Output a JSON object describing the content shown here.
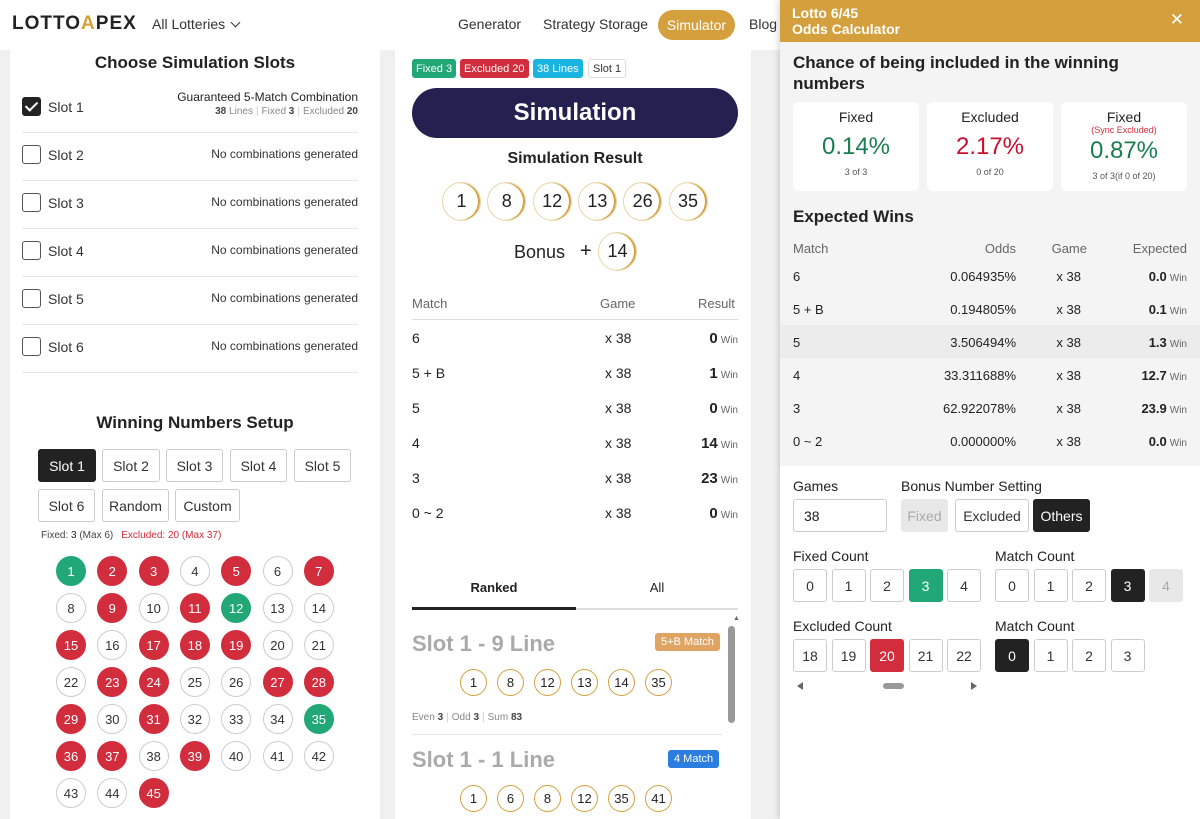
{
  "header": {
    "logo": "LOTTO",
    "logo_mark": "A",
    "logo_rest": "PEX",
    "all_lotteries": "All Lotteries",
    "nav": {
      "generator": "Generator",
      "strategy_storage": "Strategy Storage",
      "simulator": "Simulator",
      "blog": "Blog"
    }
  },
  "slots": {
    "title": "Choose Simulation Slots",
    "items": [
      {
        "name": "Slot 1",
        "checked": true,
        "info": "Guaranteed 5-Match Combination",
        "lines": "38",
        "lines_label": "Lines",
        "fixed": "3",
        "fixed_label": "Fixed",
        "excluded": "20",
        "excluded_label": "Excluded"
      },
      {
        "name": "Slot 2",
        "checked": false,
        "info": "No combinations generated"
      },
      {
        "name": "Slot 3",
        "checked": false,
        "info": "No combinations generated"
      },
      {
        "name": "Slot 4",
        "checked": false,
        "info": "No combinations generated"
      },
      {
        "name": "Slot 5",
        "checked": false,
        "info": "No combinations generated"
      },
      {
        "name": "Slot 6",
        "checked": false,
        "info": "No combinations generated"
      }
    ]
  },
  "winning_setup": {
    "title": "Winning Numbers Setup",
    "tabs": [
      "Slot 1",
      "Slot 2",
      "Slot 3",
      "Slot 4",
      "Slot 5",
      "Slot 6",
      "Random",
      "Custom"
    ],
    "active_tab": "Slot 1",
    "fixed_text": "Fixed: ",
    "fixed_val": "3",
    "fixed_max": " (Max 6)",
    "excluded_text": "Excluded: ",
    "excluded_val": "20",
    "excluded_max": " (Max 37)",
    "numbers": [
      "1",
      "2",
      "3",
      "4",
      "5",
      "6",
      "7",
      "8",
      "9",
      "10",
      "11",
      "12",
      "13",
      "14",
      "15",
      "16",
      "17",
      "18",
      "19",
      "20",
      "21",
      "22",
      "23",
      "24",
      "25",
      "26",
      "27",
      "28",
      "29",
      "30",
      "31",
      "32",
      "33",
      "34",
      "35",
      "36",
      "37",
      "38",
      "39",
      "40",
      "41",
      "42",
      "43",
      "44",
      "45"
    ],
    "fixed_numbers": [
      1,
      12,
      35
    ],
    "excluded_numbers": [
      2,
      3,
      5,
      7,
      9,
      11,
      15,
      17,
      18,
      19,
      23,
      24,
      27,
      28,
      29,
      31,
      36,
      37,
      39,
      45
    ],
    "colors": {
      "fixed": "#22a876",
      "excluded": "#d22d3d"
    }
  },
  "simulation": {
    "badges": [
      {
        "text": "Fixed 3",
        "color": "#22a876"
      },
      {
        "text": "Excluded 20",
        "color": "#d22d3d"
      },
      {
        "text": "38 Lines",
        "color": "#19b5e0"
      },
      {
        "text": "Slot 1",
        "color": "#ffffff"
      }
    ],
    "button": "Simulation",
    "result_title": "Simulation Result",
    "result_numbers": [
      "1",
      "8",
      "12",
      "13",
      "26",
      "35"
    ],
    "bonus_label": "Bonus",
    "bonus_plus": "+",
    "bonus_number": "14",
    "table_headers": [
      "Match",
      "Game",
      "Result"
    ],
    "rows": [
      {
        "match": "6",
        "game": "x 38",
        "result": "0",
        "unit": "Win"
      },
      {
        "match": "5 + B",
        "game": "x 38",
        "result": "1",
        "unit": "Win"
      },
      {
        "match": "5",
        "game": "x 38",
        "result": "0",
        "unit": "Win"
      },
      {
        "match": "4",
        "game": "x 38",
        "result": "14",
        "unit": "Win"
      },
      {
        "match": "3",
        "game": "x 38",
        "result": "23",
        "unit": "Win"
      },
      {
        "match": "0 ~ 2",
        "game": "x 38",
        "result": "0",
        "unit": "Win"
      }
    ],
    "tabs": [
      "Ranked",
      "All"
    ],
    "ranked": [
      {
        "title": "Slot 1 - 9 Line",
        "badge": "5+B Match",
        "badge_color": "#e0a462",
        "numbers": [
          "1",
          "8",
          "12",
          "13",
          "14",
          "35"
        ],
        "even_label": "Even",
        "even": "3",
        "odd_label": "Odd",
        "odd": "3",
        "sum_label": "Sum",
        "sum": "83"
      },
      {
        "title": "Slot 1 - 1 Line",
        "badge": "4 Match",
        "badge_color": "#2b7de0",
        "numbers": [
          "1",
          "6",
          "8",
          "12",
          "35",
          "41"
        ]
      }
    ]
  },
  "calculator": {
    "title_line1": "Lotto 6/45",
    "title_line2": "Odds Calculator",
    "close": "✕",
    "chance_title": "Chance of being included in the winning numbers",
    "cards": [
      {
        "label": "Fixed",
        "sublabel": "",
        "pct": "0.14%",
        "sub": "3 of 3",
        "color": "#1a7d4e"
      },
      {
        "label": "Excluded",
        "sublabel": "",
        "pct": "2.17%",
        "sub": "0 of 20",
        "color": "#c8102e"
      },
      {
        "label": "Fixed",
        "sublabel": "(Sync Excluded)",
        "pct": "0.87%",
        "sub": "3 of 3(if 0 of 20)",
        "color": "#1a7d4e"
      }
    ],
    "expected_title": "Expected Wins",
    "headers": [
      "Match",
      "Odds",
      "Game",
      "Expected"
    ],
    "rows": [
      {
        "match": "6",
        "odds": "0.064935%",
        "game": "x 38",
        "expected": "0.0",
        "unit": "Win"
      },
      {
        "match": "5 + B",
        "odds": "0.194805%",
        "game": "x 38",
        "expected": "0.1",
        "unit": "Win"
      },
      {
        "match": "5",
        "odds": "3.506494%",
        "game": "x 38",
        "expected": "1.3",
        "unit": "Win"
      },
      {
        "match": "4",
        "odds": "33.311688%",
        "game": "x 38",
        "expected": "12.7",
        "unit": "Win"
      },
      {
        "match": "3",
        "odds": "62.922078%",
        "game": "x 38",
        "expected": "23.9",
        "unit": "Win"
      },
      {
        "match": "0 ~ 2",
        "odds": "0.000000%",
        "game": "x 38",
        "expected": "0.0",
        "unit": "Win"
      }
    ],
    "games_label": "Games",
    "games_value": "38",
    "bonus_label": "Bonus Number Setting",
    "bonus_options": [
      "Fixed",
      "Excluded",
      "Others"
    ],
    "bonus_active": "Others",
    "fixed_count_label": "Fixed Count",
    "fixed_count_options": [
      "0",
      "1",
      "2",
      "3",
      "4"
    ],
    "fixed_count_active": "3",
    "match_count_label": "Match Count",
    "match_count_options": [
      "0",
      "1",
      "2",
      "3",
      "4"
    ],
    "match_count_active": "3",
    "match_count_disabled": "4",
    "excluded_count_label": "Excluded Count",
    "excluded_count_options": [
      "18",
      "19",
      "20",
      "21",
      "22"
    ],
    "excluded_count_active": "20",
    "match_count2_label": "Match Count",
    "match_count2_options": [
      "0",
      "1",
      "2",
      "3"
    ],
    "match_count2_active": "0"
  }
}
